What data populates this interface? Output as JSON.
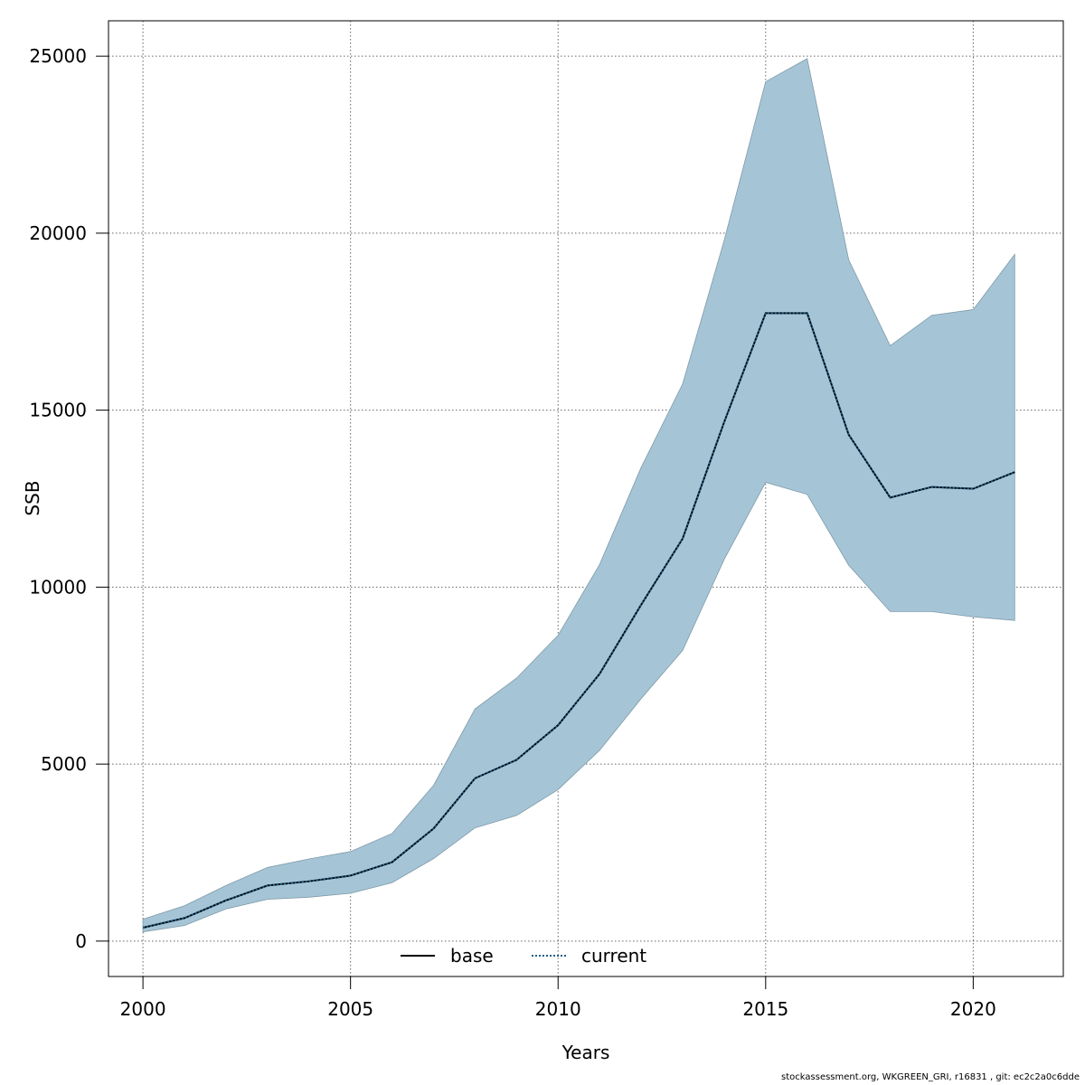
{
  "chart_data": {
    "type": "line",
    "xlabel": "Years",
    "ylabel": "SSB",
    "xlim": [
      1999.17,
      2022.17
    ],
    "ylim": [
      -1000,
      26000
    ],
    "x_ticks": [
      2000,
      2005,
      2010,
      2015,
      2020
    ],
    "y_ticks": [
      0,
      5000,
      10000,
      15000,
      20000,
      25000
    ],
    "grid": true,
    "legend": {
      "position": "bottom",
      "entries": [
        "base",
        "current"
      ]
    },
    "x": [
      2000,
      2001,
      2002,
      2003,
      2004,
      2005,
      2006,
      2007,
      2008,
      2009,
      2010,
      2011,
      2012,
      2013,
      2014,
      2015,
      2016,
      2017,
      2018,
      2019,
      2020,
      2021
    ],
    "band": {
      "color": "#a5c5d6",
      "lower": [
        260,
        440,
        910,
        1180,
        1240,
        1350,
        1650,
        2330,
        3200,
        3550,
        4280,
        5390,
        6850,
        8210,
        10780,
        12960,
        12620,
        10620,
        9310,
        9310,
        9160,
        9060
      ],
      "upper": [
        620,
        1000,
        1570,
        2080,
        2320,
        2530,
        3040,
        4400,
        6560,
        7430,
        8640,
        10640,
        13380,
        15740,
        19790,
        24280,
        24930,
        19250,
        16820,
        17680,
        17840,
        19400
      ]
    },
    "series": [
      {
        "name": "base",
        "style": "solid",
        "color": "#000000",
        "values": [
          380,
          650,
          1150,
          1570,
          1690,
          1850,
          2230,
          3180,
          4600,
          5120,
          6100,
          7550,
          9500,
          11370,
          14660,
          17740,
          17740,
          14310,
          12530,
          12830,
          12780,
          13250
        ]
      },
      {
        "name": "current",
        "style": "dotted",
        "color": "#1f5f8b",
        "values": [
          380,
          650,
          1150,
          1570,
          1690,
          1850,
          2230,
          3180,
          4600,
          5120,
          6100,
          7550,
          9500,
          11370,
          14660,
          17740,
          17740,
          14310,
          12530,
          12830,
          12780,
          13250
        ]
      }
    ]
  },
  "footer": "stockassessment.org, WKGREEN_GRI, r16831 , git: ec2c2a0c6dde"
}
